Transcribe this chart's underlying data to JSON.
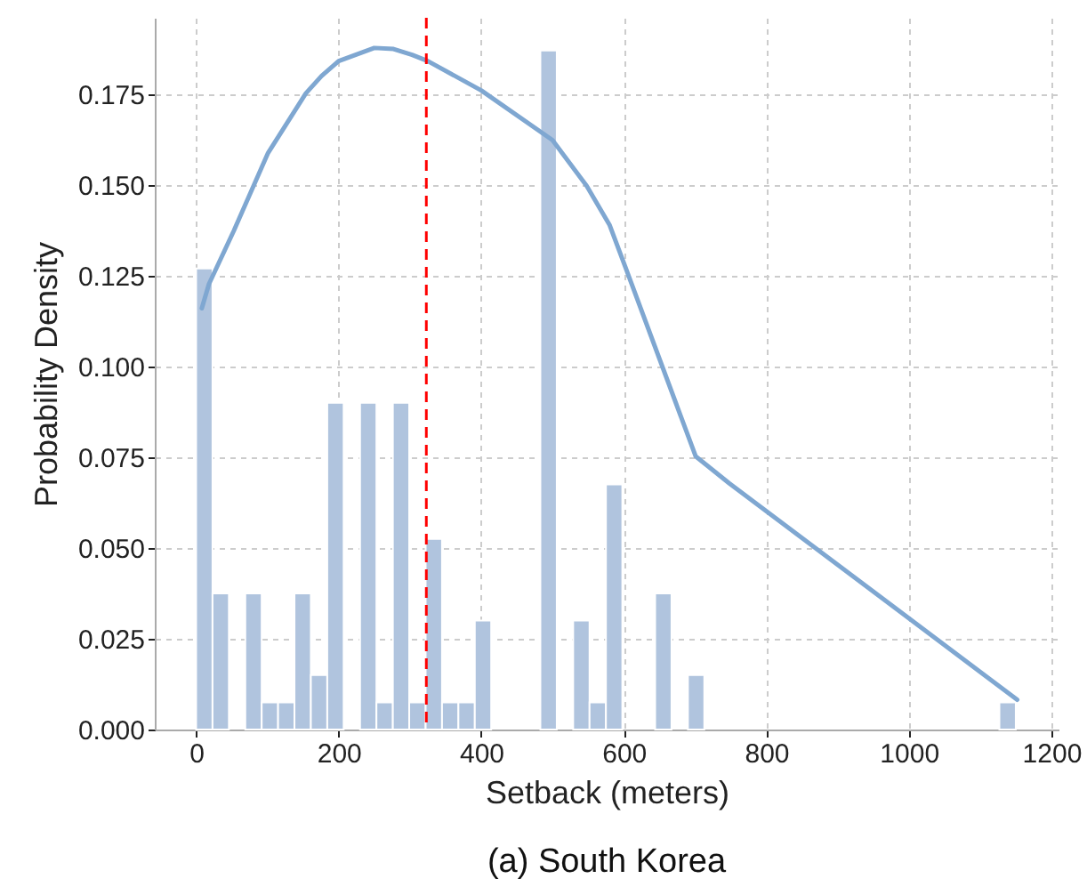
{
  "chart_data": {
    "type": "histogram",
    "title": "(a) South Korea",
    "xlabel": "Setback (meters)",
    "ylabel": "Probability Density",
    "xlim": [
      -58,
      1210
    ],
    "ylim": [
      0,
      0.196
    ],
    "xticks": [
      0,
      200,
      400,
      600,
      800,
      1000,
      1200
    ],
    "yticks": [
      {
        "value": 0,
        "label": "0.000"
      },
      {
        "value": 0.025,
        "label": "0.025"
      },
      {
        "value": 0.05,
        "label": "0.050"
      },
      {
        "value": 0.075,
        "label": "0.075"
      },
      {
        "value": 0.1,
        "label": "0.100"
      },
      {
        "value": 0.125,
        "label": "0.125"
      },
      {
        "value": 0.15,
        "label": "0.150"
      },
      {
        "value": 0.175,
        "label": "0.175"
      }
    ],
    "grid": true,
    "series": [
      {
        "type": "histogram",
        "color": "#b0c4de",
        "bins": [
          0,
          23,
          46,
          69,
          92,
          115,
          138,
          161,
          184,
          207,
          230,
          253,
          276,
          299,
          322,
          345,
          368,
          391,
          414,
          437,
          460,
          483,
          506,
          529,
          552,
          575,
          598,
          621,
          644,
          667,
          690,
          713,
          736,
          759,
          782,
          805,
          828,
          851,
          874,
          897,
          920,
          943,
          966,
          989,
          1012,
          1035,
          1058,
          1081,
          1104,
          1127,
          1150
        ],
        "values": [
          0.127,
          0.0375,
          0,
          0.0375,
          0.0075,
          0.0075,
          0.0375,
          0.015,
          0.09,
          0,
          0.09,
          0.0075,
          0.09,
          0.0075,
          0.0525,
          0.0075,
          0.0075,
          0.03,
          0,
          0,
          0,
          0.187,
          0,
          0.03,
          0.0075,
          0.0675,
          0,
          0,
          0.0375,
          0,
          0.015,
          0,
          0,
          0,
          0,
          0,
          0,
          0,
          0,
          0,
          0,
          0,
          0,
          0,
          0,
          0,
          0,
          0,
          0,
          0.0075
        ]
      },
      {
        "type": "line",
        "color": "#7fa7d1",
        "x": [
          8,
          18,
          53,
          101,
          154,
          176,
          200,
          250,
          277,
          303,
          325,
          400,
          500,
          548,
          580,
          602,
          701,
          748,
          1152
        ],
        "values": [
          0.116,
          0.1227,
          0.1374,
          0.1588,
          0.1752,
          0.18,
          0.1841,
          0.1877,
          0.1874,
          0.1858,
          0.1841,
          0.176,
          0.1623,
          0.1497,
          0.139,
          0.1275,
          0.0752,
          0.0678,
          0.0082
        ]
      }
    ],
    "ref_lines": [
      {
        "axis": "x",
        "value": 323,
        "color": "#ff0000",
        "line_style": "dashed"
      }
    ]
  }
}
